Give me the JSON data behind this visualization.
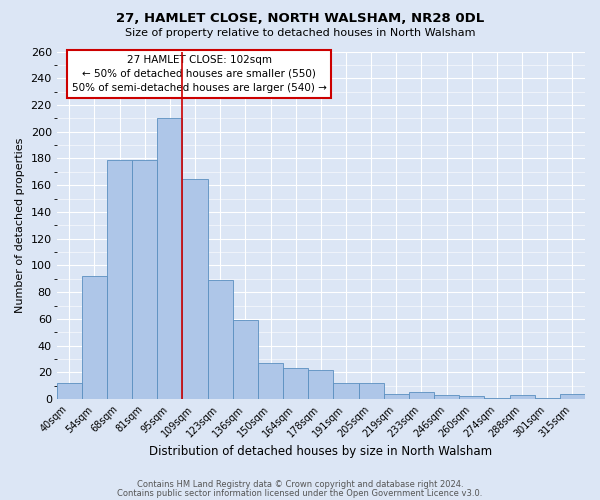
{
  "title": "27, HAMLET CLOSE, NORTH WALSHAM, NR28 0DL",
  "subtitle": "Size of property relative to detached houses in North Walsham",
  "xlabel": "Distribution of detached houses by size in North Walsham",
  "ylabel": "Number of detached properties",
  "bar_labels": [
    "40sqm",
    "54sqm",
    "68sqm",
    "81sqm",
    "95sqm",
    "109sqm",
    "123sqm",
    "136sqm",
    "150sqm",
    "164sqm",
    "178sqm",
    "191sqm",
    "205sqm",
    "219sqm",
    "233sqm",
    "246sqm",
    "260sqm",
    "274sqm",
    "288sqm",
    "301sqm",
    "315sqm"
  ],
  "bar_values": [
    12,
    92,
    179,
    179,
    210,
    165,
    89,
    59,
    27,
    23,
    22,
    12,
    12,
    4,
    5,
    3,
    2,
    1,
    3,
    1,
    4
  ],
  "bar_color": "#aec6e8",
  "bar_edge_color": "#5a8fc0",
  "background_color": "#dce6f5",
  "vline_x": 4.5,
  "vline_color": "#cc0000",
  "annotation_title": "27 HAMLET CLOSE: 102sqm",
  "annotation_line1": "← 50% of detached houses are smaller (550)",
  "annotation_line2": "50% of semi-detached houses are larger (540) →",
  "annotation_box_color": "#ffffff",
  "annotation_box_edge": "#cc0000",
  "ylim": [
    0,
    260
  ],
  "ytick_max": 260,
  "ytick_step": 20,
  "footer1": "Contains HM Land Registry data © Crown copyright and database right 2024.",
  "footer2": "Contains public sector information licensed under the Open Government Licence v3.0."
}
